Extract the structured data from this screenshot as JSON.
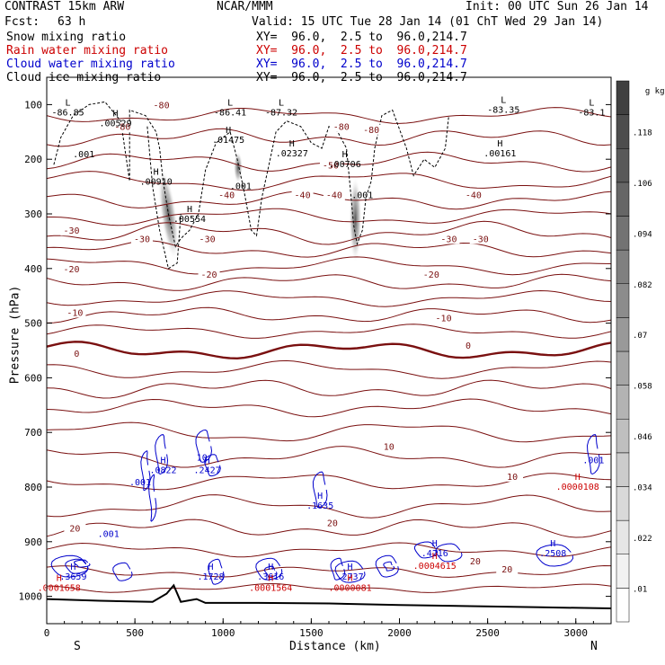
{
  "header": {
    "model": "CONTRAST 15km ARW",
    "org": "NCAR/MMM",
    "init": "Init: 00 UTC Sun 26 Jan 14",
    "fcst_label": "Fcst:",
    "fcst_value": "63 h",
    "valid": "Valid: 15 UTC Tue 28 Jan 14 (01 ChT Wed 29 Jan 14)",
    "fields": [
      {
        "name": "Snow mixing ratio",
        "xy": "XY=  96.0,  2.5 to  96.0,214.7",
        "color": "#000000"
      },
      {
        "name": "Rain water mixing ratio",
        "xy": "XY=  96.0,  2.5 to  96.0,214.7",
        "color": "#cc0000"
      },
      {
        "name": "Cloud water mixing ratio",
        "xy": "XY=  96.0,  2.5 to  96.0,214.7",
        "color": "#0000cc"
      },
      {
        "name": "Cloud ice mixing ratio",
        "xy": "XY=  96.0,  2.5 to  96.0,214.7",
        "color": "#000000"
      }
    ]
  },
  "chart_data": {
    "type": "cross-section contour",
    "xlabel": "Distance (km)",
    "ylabel": "Pressure (hPa)",
    "xlim": [
      0,
      3200
    ],
    "ylim": [
      1050,
      50
    ],
    "x_ticks": [
      0,
      500,
      1000,
      1500,
      2000,
      2500,
      3000
    ],
    "y_ticks": [
      100,
      200,
      300,
      400,
      500,
      600,
      700,
      800,
      900,
      1000
    ],
    "left_end": "S",
    "right_end": "N",
    "colorbar": {
      "unit": "g kg",
      "unit_exp": "-1",
      "ticks": [
        ".01",
        ".022",
        ".034",
        ".046",
        ".058",
        ".07",
        ".082",
        ".094",
        ".106",
        ".118"
      ],
      "colors": [
        "#ffffff",
        "#f2f2f2",
        "#e6e6e6",
        "#d9d9d9",
        "#cccccc",
        "#bfbfbf",
        "#b3b3b3",
        "#a6a6a6",
        "#999999",
        "#8c8c8c",
        "#808080",
        "#737373",
        "#666666",
        "#595959",
        "#4d4d4d",
        "#404040"
      ]
    },
    "temperature_labels": [
      {
        "text": "-80",
        "x": 650,
        "p": 100
      },
      {
        "text": "-80",
        "x": 430,
        "p": 140
      },
      {
        "text": "-80",
        "x": 1670,
        "p": 140
      },
      {
        "text": "-80",
        "x": 1840,
        "p": 145
      },
      {
        "text": "-50",
        "x": 1610,
        "p": 210
      },
      {
        "text": "-40",
        "x": 1020,
        "p": 265
      },
      {
        "text": "-40",
        "x": 1450,
        "p": 265
      },
      {
        "text": "-40",
        "x": 1630,
        "p": 265
      },
      {
        "text": "-40",
        "x": 2420,
        "p": 265
      },
      {
        "text": "-30",
        "x": 140,
        "p": 330
      },
      {
        "text": "-30",
        "x": 540,
        "p": 345
      },
      {
        "text": "-30",
        "x": 910,
        "p": 345
      },
      {
        "text": "-30",
        "x": 2280,
        "p": 345
      },
      {
        "text": "-30",
        "x": 2460,
        "p": 345
      },
      {
        "text": "-20",
        "x": 140,
        "p": 400
      },
      {
        "text": "-20",
        "x": 920,
        "p": 410
      },
      {
        "text": "-20",
        "x": 2180,
        "p": 410
      },
      {
        "text": "-10",
        "x": 160,
        "p": 480
      },
      {
        "text": "-10",
        "x": 2250,
        "p": 490
      },
      {
        "text": "0",
        "x": 170,
        "p": 555
      },
      {
        "text": "0",
        "x": 2390,
        "p": 540
      },
      {
        "text": "10",
        "x": 1940,
        "p": 725
      },
      {
        "text": "10",
        "x": 2640,
        "p": 780
      },
      {
        "text": "20",
        "x": 160,
        "p": 875
      },
      {
        "text": "20",
        "x": 1620,
        "p": 865
      },
      {
        "text": "20",
        "x": 2430,
        "p": 935
      },
      {
        "text": "20",
        "x": 2610,
        "p": 950
      }
    ],
    "extrema": [
      {
        "mark": "L",
        "value": "-86.85",
        "x": 120,
        "p": 105,
        "color": "#000"
      },
      {
        "mark": "L",
        "value": "-86.41",
        "x": 1040,
        "p": 105,
        "color": "#000"
      },
      {
        "mark": "L",
        "value": "-87.32",
        "x": 1330,
        "p": 105,
        "color": "#000"
      },
      {
        "mark": "L",
        "value": "-83.35",
        "x": 2590,
        "p": 100,
        "color": "#000"
      },
      {
        "mark": "L",
        "value": "-83.1",
        "x": 3090,
        "p": 105,
        "color": "#000"
      },
      {
        "mark": "H",
        "value": ".00529",
        "x": 390,
        "p": 125,
        "color": "#000"
      },
      {
        "mark": "H",
        "value": ".01475",
        "x": 1030,
        "p": 155,
        "color": "#000"
      },
      {
        "mark": "H",
        "value": ".02327",
        "x": 1390,
        "p": 180,
        "color": "#000"
      },
      {
        "mark": "H",
        "value": ".00706",
        "x": 1690,
        "p": 200,
        "color": "#000"
      },
      {
        "mark": "H",
        "value": ".00161",
        "x": 2570,
        "p": 180,
        "color": "#000"
      },
      {
        "mark": "H",
        "value": ".00910",
        "x": 620,
        "p": 232,
        "color": "#000"
      },
      {
        "mark": "H",
        "value": ".00554",
        "x": 810,
        "p": 300,
        "color": "#000"
      },
      {
        "mark": "H",
        "value": ".0822",
        "x": 660,
        "p": 760,
        "color": "#0000cc"
      },
      {
        "mark": "H",
        "value": ".2427",
        "x": 910,
        "p": 760,
        "color": "#0000cc"
      },
      {
        "mark": "H",
        "value": ".1635",
        "x": 1550,
        "p": 825,
        "color": "#0000cc"
      },
      {
        "mark": "H",
        "value": ".1728",
        "x": 930,
        "p": 955,
        "color": "#0000cc"
      },
      {
        "mark": "H",
        "value": ".3659",
        "x": 150,
        "p": 955,
        "color": "#0000cc"
      },
      {
        "mark": "H",
        "value": ".3616",
        "x": 1270,
        "p": 955,
        "color": "#0000cc"
      },
      {
        "mark": "H",
        "value": ".2737",
        "x": 1720,
        "p": 955,
        "color": "#0000cc"
      },
      {
        "mark": "H",
        "value": ".4216",
        "x": 2200,
        "p": 912,
        "color": "#0000cc"
      },
      {
        "mark": "H",
        "value": ".2508",
        "x": 2870,
        "p": 912,
        "color": "#0000cc"
      },
      {
        "mark": "H",
        "value": ".0001658",
        "x": 70,
        "p": 975,
        "color": "#cc0000"
      },
      {
        "mark": "H",
        "value": ".0001564",
        "x": 1270,
        "p": 975,
        "color": "#cc0000"
      },
      {
        "mark": "H",
        "value": ".0000081",
        "x": 1720,
        "p": 975,
        "color": "#cc0000"
      },
      {
        "mark": "H",
        "value": ".0004615",
        "x": 2200,
        "p": 935,
        "color": "#cc0000"
      },
      {
        "mark": "H",
        "value": ".0000108",
        "x": 3010,
        "p": 790,
        "color": "#cc0000"
      }
    ],
    "contour_labels": [
      {
        "text": ".001",
        "x": 210,
        "p": 190,
        "color": "#000"
      },
      {
        "text": ".001",
        "x": 1100,
        "p": 248,
        "color": "#000"
      },
      {
        "text": ".001",
        "x": 1790,
        "p": 265,
        "color": "#000"
      },
      {
        "text": ".001",
        "x": 530,
        "p": 790,
        "color": "#0000cc"
      },
      {
        "text": ".001",
        "x": 3100,
        "p": 750,
        "color": "#0000cc"
      },
      {
        "text": ".001",
        "x": 350,
        "p": 885,
        "color": "#0000cc"
      },
      {
        "text": "10",
        "x": 880,
        "p": 745,
        "color": "#0000cc"
      }
    ]
  }
}
